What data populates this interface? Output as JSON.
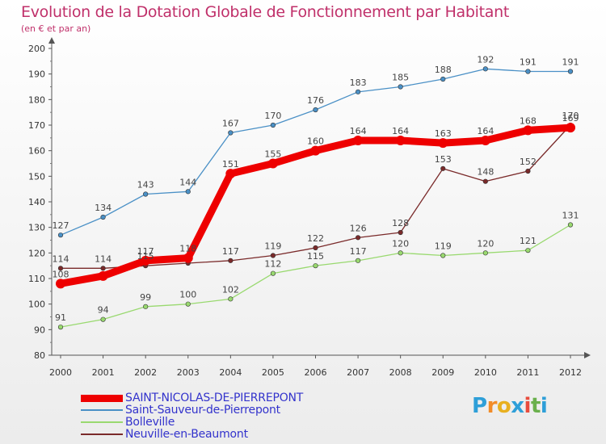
{
  "title": "Evolution de la Dotation Globale de Fonctionnement par Habitant",
  "subtitle": "(en € et par an)",
  "logo": {
    "text": "Proxiti",
    "letters": [
      "P",
      "r",
      "o",
      "x",
      "i",
      "t",
      "i"
    ],
    "colors": [
      "#2e9fd8",
      "#f28c28",
      "#e8b020",
      "#2e9fd8",
      "#e84c3d",
      "#6ab04c",
      "#2e9fd8"
    ]
  },
  "chart_data": {
    "type": "line",
    "title": "Evolution de la Dotation Globale de Fonctionnement par Habitant",
    "subtitle": "(en € et par an)",
    "xlabel": "",
    "ylabel": "",
    "ylim": [
      80,
      200
    ],
    "yticks": [
      80,
      90,
      100,
      110,
      120,
      130,
      140,
      150,
      160,
      170,
      180,
      190,
      200
    ],
    "grid": false,
    "legend_position": "bottom-left",
    "categories": [
      "2000",
      "2001",
      "2002",
      "2003",
      "2004",
      "2005",
      "2006",
      "2007",
      "2008",
      "2009",
      "2010",
      "2011",
      "2012"
    ],
    "series": [
      {
        "name": "SAINT-NICOLAS-DE-PIERREPONT",
        "color": "#ee0000",
        "values": [
          108,
          111,
          117,
          118,
          151,
          155,
          160,
          164,
          164,
          163,
          164,
          168,
          169
        ],
        "labels": [
          "108",
          "",
          "117",
          "118",
          "151",
          "155",
          "160",
          "164",
          "164",
          "163",
          "164",
          "168",
          "169"
        ]
      },
      {
        "name": "Saint-Sauveur-de-Pierrepont",
        "color": "#4a90c6",
        "values": [
          127,
          134,
          143,
          144,
          167,
          170,
          176,
          183,
          185,
          188,
          192,
          191,
          191
        ],
        "labels": [
          "127",
          "134",
          "143",
          "144",
          "167",
          "170",
          "176",
          "183",
          "185",
          "188",
          "192",
          "191",
          "191"
        ]
      },
      {
        "name": "Bolleville",
        "color": "#99d96f",
        "values": [
          91,
          94,
          99,
          100,
          102,
          112,
          115,
          117,
          120,
          119,
          120,
          121,
          131
        ],
        "labels": [
          "91",
          "94",
          "99",
          "100",
          "102",
          "112",
          "115",
          "117",
          "120",
          "119",
          "120",
          "121",
          "131"
        ]
      },
      {
        "name": "Neuville-en-Beaumont",
        "color": "#7a2a2a",
        "values": [
          114,
          114,
          115,
          116,
          117,
          119,
          122,
          126,
          128,
          153,
          148,
          152,
          170
        ],
        "labels": [
          "114",
          "114",
          "115",
          "",
          "117",
          "119",
          "122",
          "126",
          "128",
          "153",
          "148",
          "152",
          "170"
        ]
      }
    ]
  }
}
